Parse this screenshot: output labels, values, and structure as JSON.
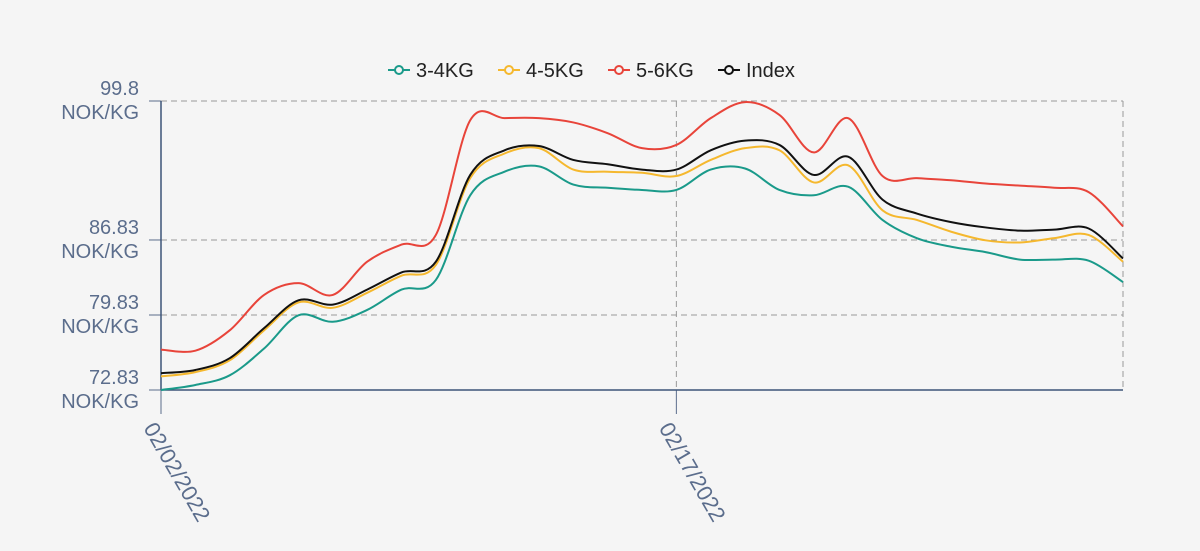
{
  "chart_data": {
    "type": "line",
    "x": [
      "02/02/2022",
      "02/03/2022",
      "02/04/2022",
      "02/05/2022",
      "02/06/2022",
      "02/07/2022",
      "02/08/2022",
      "02/09/2022",
      "02/10/2022",
      "02/11/2022",
      "02/12/2022",
      "02/13/2022",
      "02/14/2022",
      "02/15/2022",
      "02/16/2022",
      "02/17/2022",
      "02/18/2022",
      "02/19/2022",
      "02/20/2022",
      "02/21/2022",
      "02/22/2022",
      "02/23/2022",
      "02/24/2022",
      "02/25/2022",
      "02/26/2022",
      "02/27/2022",
      "02/28/2022",
      "03/01/2022",
      "03/02/2022"
    ],
    "xticks": [
      "02/02/2022",
      "02/17/2022"
    ],
    "series": [
      {
        "name": "3-4KG",
        "color": "#1a9a8a",
        "values": [
          72.83,
          73.3,
          74.2,
          76.7,
          79.8,
          79.2,
          80.3,
          82.2,
          83.1,
          91.0,
          93.2,
          93.7,
          92.0,
          91.7,
          91.5,
          91.5,
          93.4,
          93.5,
          91.5,
          91.0,
          91.8,
          88.7,
          87.0,
          86.2,
          85.7,
          85.0,
          85.0,
          84.9,
          82.9
        ]
      },
      {
        "name": "4-5KG",
        "color": "#f5b82e",
        "values": [
          74.1,
          74.5,
          75.6,
          78.4,
          81.0,
          80.5,
          81.9,
          83.5,
          84.5,
          92.6,
          94.9,
          95.4,
          93.4,
          93.2,
          93.1,
          92.8,
          94.3,
          95.4,
          95.2,
          92.2,
          93.8,
          89.6,
          88.7,
          87.6,
          86.8,
          86.6,
          87.0,
          87.3,
          84.8
        ]
      },
      {
        "name": "5-6KG",
        "color": "#e8443a",
        "values": [
          76.6,
          76.5,
          78.4,
          81.7,
          82.8,
          81.7,
          84.8,
          86.4,
          87.3,
          98.0,
          98.2,
          98.2,
          97.8,
          96.8,
          95.4,
          95.7,
          98.2,
          99.7,
          98.5,
          95.0,
          98.2,
          92.8,
          92.6,
          92.4,
          92.1,
          91.9,
          91.7,
          91.3,
          88.1
        ]
      },
      {
        "name": "Index",
        "color": "#111111",
        "values": [
          74.4,
          74.7,
          75.8,
          78.6,
          81.2,
          80.8,
          82.2,
          83.8,
          84.8,
          92.9,
          95.2,
          95.6,
          94.3,
          93.9,
          93.4,
          93.4,
          95.2,
          96.1,
          95.7,
          92.9,
          94.6,
          90.6,
          89.3,
          88.5,
          88.0,
          87.7,
          87.8,
          87.9,
          85.1
        ]
      }
    ],
    "ylim": [
      72.83,
      99.8
    ],
    "yticks": [
      {
        "value": 72.83,
        "label": "72.83 NOK/KG"
      },
      {
        "value": 79.83,
        "label": "79.83 NOK/KG"
      },
      {
        "value": 86.83,
        "label": "86.83 NOK/KG"
      },
      {
        "value": 99.8,
        "label": "99.8 NOK/KG"
      }
    ],
    "grid": true,
    "legend": "top"
  }
}
